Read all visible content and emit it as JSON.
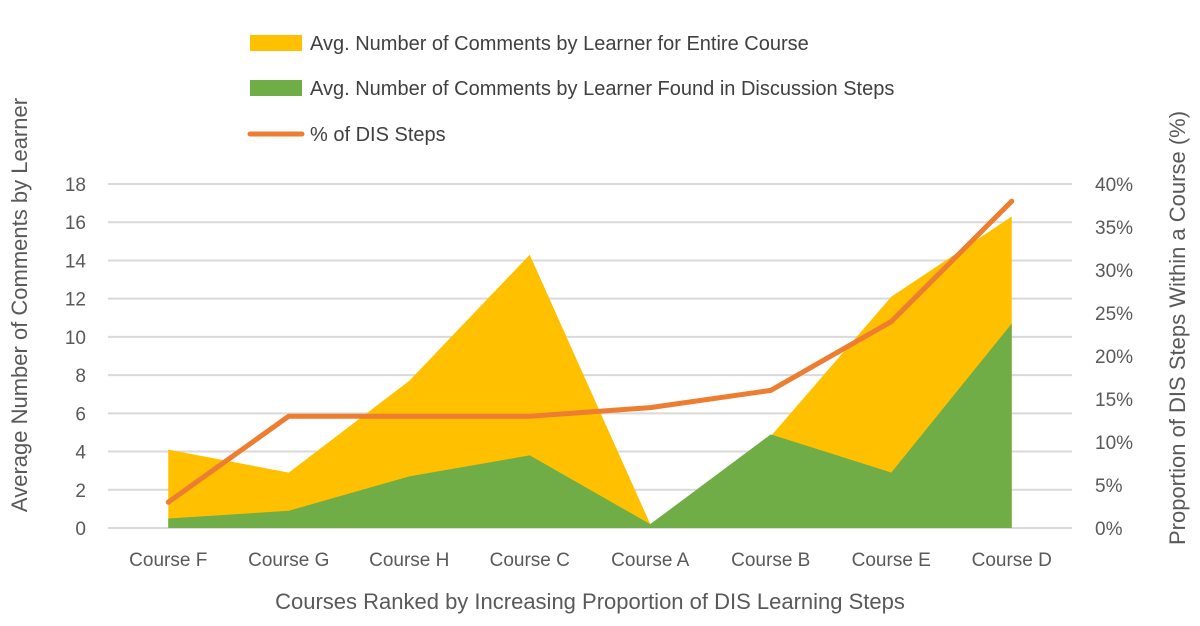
{
  "chart_data": {
    "type": "area",
    "categories": [
      "Course F",
      "Course G",
      "Course H",
      "Course C",
      "Course A",
      "Course B",
      "Course E",
      "Course D"
    ],
    "series": [
      {
        "name": "Avg. Number of Comments by Learner for Entire Course",
        "type": "area",
        "axis": "left",
        "color": "#FFC000",
        "values": [
          4.1,
          2.9,
          7.7,
          14.3,
          0.2,
          4.8,
          12.1,
          16.3
        ]
      },
      {
        "name": "Avg. Number of Comments by Learner Found in Discussion Steps",
        "type": "area",
        "axis": "left",
        "color": "#70AD47",
        "values": [
          0.5,
          0.9,
          2.7,
          3.8,
          0.2,
          4.9,
          2.9,
          10.7
        ]
      },
      {
        "name": "% of DIS Steps",
        "type": "line",
        "axis": "right",
        "color": "#ED7D31",
        "values": [
          3,
          13,
          13,
          13,
          14,
          16,
          24,
          38
        ]
      }
    ],
    "xlabel": "Courses Ranked by Increasing Proportion of DIS Learning Steps",
    "ylabel": "Average Number of Comments by Learner",
    "y2label": "Proportion of DIS Steps Within a Course (%)",
    "ylim": [
      0,
      18
    ],
    "y_ticks": [
      "0",
      "2",
      "4",
      "6",
      "8",
      "10",
      "12",
      "14",
      "16",
      "18"
    ],
    "y2lim": [
      0,
      40
    ],
    "y2_ticks": [
      "0%",
      "5%",
      "10%",
      "15%",
      "20%",
      "25%",
      "30%",
      "35%",
      "40%"
    ],
    "grid": true,
    "legend_position": "top"
  }
}
